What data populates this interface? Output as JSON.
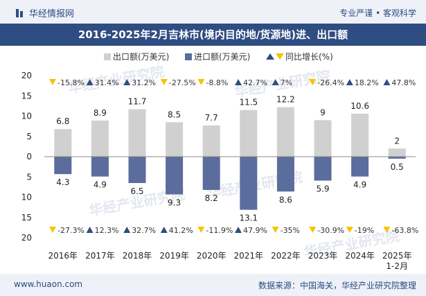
{
  "header": {
    "brand": "华经情报网",
    "tagline": "专业严谨 • 客观科学"
  },
  "footer": {
    "url": "www.huaon.com",
    "source": "数据来源：中国海关，华经产业研究院整理"
  },
  "colors": {
    "export": "#d0d0d0",
    "import": "#5a6d9c",
    "up": "#2e4d82",
    "down": "#f5c400",
    "title_bg": "#2e4d82"
  },
  "chart_data": {
    "type": "bar",
    "title": "2016-2025年2月吉林市(境内目的地/货源地)进、出口额",
    "legend": {
      "export": "出口额(万美元)",
      "import": "进口额(万美元)",
      "growth": "同比增长(%)"
    },
    "categories": [
      "2016年",
      "2017年",
      "2018年",
      "2019年",
      "2020年",
      "2021年",
      "2022年",
      "2023年",
      "2024年",
      "2025年 1-2月"
    ],
    "series": [
      {
        "name": "出口额(万美元)",
        "values": [
          6.8,
          8.9,
          11.7,
          8.5,
          7.7,
          11.5,
          12.2,
          9,
          10.6,
          2
        ],
        "labels": [
          "6.8",
          "8.9",
          "11.7",
          "8.5",
          "7.7",
          "11.5",
          "12.2",
          "9",
          "10.6",
          "2"
        ]
      },
      {
        "name": "进口额(万美元)",
        "values": [
          4.3,
          4.9,
          6.5,
          9.3,
          8.2,
          13.1,
          8.6,
          5.9,
          4.9,
          0.5
        ],
        "labels": [
          "4.3",
          "4.9",
          "6.5",
          "9.3",
          "8.2",
          "13.1",
          "8.6",
          "5.9",
          "4.9",
          "0.5"
        ]
      }
    ],
    "export_growth": [
      "-15.8%",
      "31.4%",
      "31.2%",
      "-27.5%",
      "-8.8%",
      "42.7%",
      "7%",
      "-26.4%",
      "18.2%",
      "47.8%"
    ],
    "import_growth": [
      "-27.3%",
      "12.3%",
      "32.7%",
      "41.2%",
      "-11.9%",
      "47.9%",
      "-35%",
      "-30.9%",
      "-19%",
      "-63.8%"
    ],
    "yticks": [
      "20",
      "15",
      "10",
      "5",
      "0",
      "5",
      "10",
      "15",
      "20"
    ],
    "ylim": [
      -20,
      20
    ],
    "watermark": "华经产业研究院"
  }
}
